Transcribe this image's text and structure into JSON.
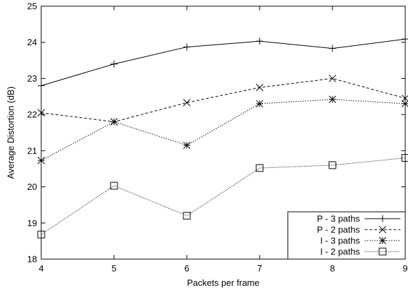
{
  "chart_data": {
    "type": "line",
    "xlabel": "Packets per frame",
    "ylabel": "Average Distortion (dB)",
    "xlim": [
      4,
      9
    ],
    "ylim": [
      18,
      25
    ],
    "xticks": [
      4,
      5,
      6,
      7,
      8,
      9
    ],
    "yticks": [
      18,
      19,
      20,
      21,
      22,
      23,
      24,
      25
    ],
    "grid": false,
    "legend_position": "bottom-right",
    "x": [
      4,
      5,
      6,
      7,
      8,
      9
    ],
    "series": [
      {
        "name": "P - 3 paths",
        "marker": "plus",
        "dash": "solid",
        "values": [
          22.8,
          23.4,
          23.87,
          24.03,
          23.83,
          24.09
        ]
      },
      {
        "name": "P - 2 paths",
        "marker": "cross",
        "dash": "dashed",
        "values": [
          22.05,
          21.8,
          22.33,
          22.75,
          23.0,
          22.45
        ]
      },
      {
        "name": "I - 3 paths",
        "marker": "asterisk",
        "dash": "dotted",
        "values": [
          20.73,
          21.8,
          21.15,
          22.3,
          22.42,
          22.3
        ]
      },
      {
        "name": "I - 2 paths",
        "marker": "square",
        "dash": "finedot",
        "values": [
          18.68,
          20.03,
          19.2,
          20.52,
          20.6,
          20.8
        ]
      }
    ]
  }
}
